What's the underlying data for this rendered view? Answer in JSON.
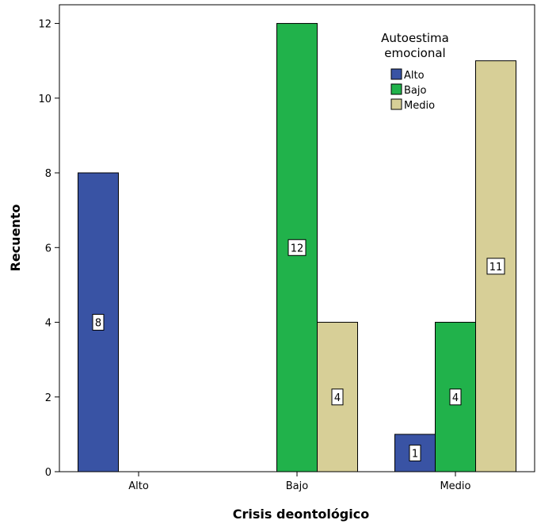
{
  "chart_data": {
    "type": "bar",
    "title": "",
    "xlabel": "Crisis deontológico",
    "ylabel": "Recuento",
    "categories": [
      "Alto",
      "Bajo",
      "Medio"
    ],
    "ylim": [
      0,
      12.5
    ],
    "yticks": [
      0,
      2,
      4,
      6,
      8,
      10,
      12
    ],
    "grid": false,
    "legend": {
      "title_lines": [
        "Autoestima",
        "emocional"
      ],
      "placement": "top-right",
      "entries": [
        "Alto",
        "Bajo",
        "Medio"
      ]
    },
    "series": [
      {
        "name": "Alto",
        "color": "#3953a4",
        "values": [
          8,
          null,
          1
        ]
      },
      {
        "name": "Bajo",
        "color": "#21b24b",
        "values": [
          null,
          12,
          4
        ]
      },
      {
        "name": "Medio",
        "color": "#d7cf97",
        "values": [
          null,
          4,
          11
        ]
      }
    ]
  }
}
